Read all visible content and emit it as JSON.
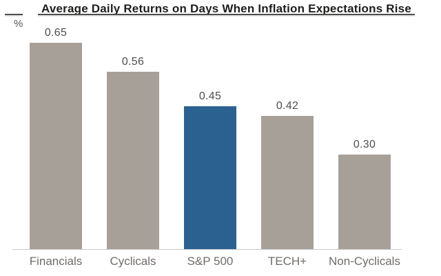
{
  "chart_data": {
    "type": "bar",
    "title": "Average Daily Returns on Days When Inflation Expectations Rise",
    "ylabel": "%",
    "categories": [
      "Financials",
      "Cyclicals",
      "S&P 500",
      "TECH+",
      "Non-Cyclicals"
    ],
    "values": [
      0.65,
      0.56,
      0.45,
      0.42,
      0.3
    ],
    "value_labels": [
      "0.65",
      "0.56",
      "0.45",
      "0.42",
      "0.30"
    ],
    "highlight_index": 2,
    "highlighted_category": "S&P 500",
    "bar_color": "#a7a099",
    "highlight_color": "#2a6191",
    "title_color": "#1d1d1b",
    "title_rule_color": "#4d4d4d",
    "value_label_color": "#4d4d4d",
    "tick_label_color": "#6f6c69",
    "ylabel_color": "#555555",
    "baseline_color": "#c9c9c9",
    "ylim": [
      0,
      0.7
    ],
    "grid": false,
    "legend": "none"
  }
}
